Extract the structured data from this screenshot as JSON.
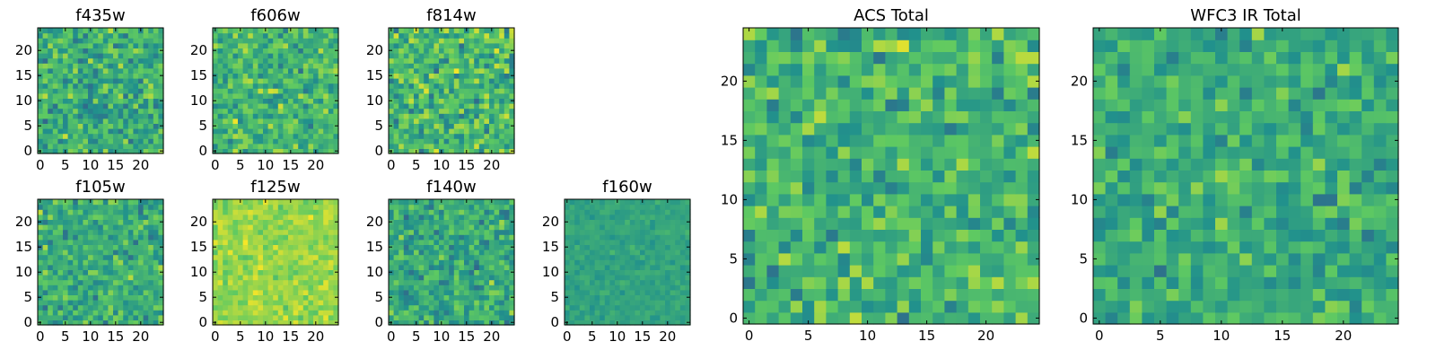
{
  "chart_data": {
    "type": "heatmap",
    "colormap": [
      "#440154",
      "#3b528b",
      "#21918c",
      "#5ec962",
      "#fde725"
    ],
    "grid_size": 25,
    "panels": [
      {
        "id": "f435w",
        "title": "f435w",
        "xticks": [
          "0",
          "5",
          "10",
          "15",
          "20"
        ],
        "yticks": [
          "0",
          "5",
          "10",
          "15",
          "20"
        ],
        "xlim": [
          0,
          25
        ],
        "ylim": [
          0,
          25
        ],
        "cell_stats": {
          "mean": 0.62,
          "sd": 0.2
        }
      },
      {
        "id": "f606w",
        "title": "f606w",
        "xticks": [
          "0",
          "5",
          "10",
          "15",
          "20"
        ],
        "yticks": [
          "0",
          "5",
          "10",
          "15",
          "20"
        ],
        "xlim": [
          0,
          25
        ],
        "ylim": [
          0,
          25
        ],
        "cell_stats": {
          "mean": 0.66,
          "sd": 0.19
        }
      },
      {
        "id": "f814w",
        "title": "f814w",
        "xticks": [
          "0",
          "5",
          "10",
          "15",
          "20"
        ],
        "yticks": [
          "0",
          "5",
          "10",
          "15",
          "20"
        ],
        "xlim": [
          0,
          25
        ],
        "ylim": [
          0,
          25
        ],
        "cell_stats": {
          "mean": 0.66,
          "sd": 0.21
        }
      },
      {
        "id": "f105w",
        "title": "f105w",
        "xticks": [
          "0",
          "5",
          "10",
          "15",
          "20"
        ],
        "yticks": [
          "0",
          "5",
          "10",
          "15",
          "20"
        ],
        "xlim": [
          0,
          25
        ],
        "ylim": [
          0,
          25
        ],
        "cell_stats": {
          "mean": 0.62,
          "sd": 0.18
        }
      },
      {
        "id": "f125w",
        "title": "f125w",
        "xticks": [
          "0",
          "5",
          "10",
          "15",
          "20"
        ],
        "yticks": [
          "0",
          "5",
          "10",
          "15",
          "20"
        ],
        "xlim": [
          0,
          25
        ],
        "ylim": [
          0,
          25
        ],
        "cell_stats": {
          "mean": 0.84,
          "sd": 0.1
        }
      },
      {
        "id": "f140w",
        "title": "f140w",
        "xticks": [
          "0",
          "5",
          "10",
          "15",
          "20"
        ],
        "yticks": [
          "0",
          "5",
          "10",
          "15",
          "20"
        ],
        "xlim": [
          0,
          25
        ],
        "ylim": [
          0,
          25
        ],
        "cell_stats": {
          "mean": 0.6,
          "sd": 0.18
        }
      },
      {
        "id": "f160w",
        "title": "f160w",
        "xticks": [
          "0",
          "5",
          "10",
          "15",
          "20"
        ],
        "yticks": [
          "0",
          "5",
          "10",
          "15",
          "20"
        ],
        "xlim": [
          0,
          25
        ],
        "ylim": [
          0,
          25
        ],
        "cell_stats": {
          "mean": 0.58,
          "sd": 0.06
        }
      },
      {
        "id": "acs_total",
        "title": "ACS Total",
        "xticks": [
          "0",
          "5",
          "10",
          "15",
          "20"
        ],
        "yticks": [
          "0",
          "5",
          "10",
          "15",
          "20"
        ],
        "xlim": [
          0,
          25
        ],
        "ylim": [
          0,
          25
        ],
        "cell_stats": {
          "mean": 0.65,
          "sd": 0.19
        }
      },
      {
        "id": "wfc3_ir_total",
        "title": "WFC3 IR Total",
        "xticks": [
          "0",
          "5",
          "10",
          "15",
          "20"
        ],
        "yticks": [
          "0",
          "5",
          "10",
          "15",
          "20"
        ],
        "xlim": [
          0,
          25
        ],
        "ylim": [
          0,
          25
        ],
        "cell_stats": {
          "mean": 0.62,
          "sd": 0.17
        }
      }
    ]
  }
}
